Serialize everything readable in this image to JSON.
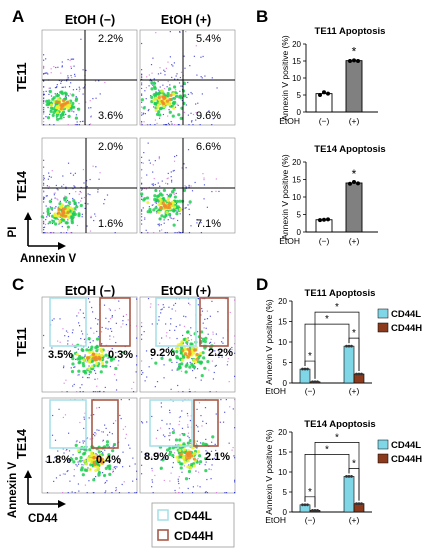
{
  "colors": {
    "white_bar": "#ffffff",
    "gray_bar": "#808080",
    "cd44l": "#7fd6e6",
    "cd44h": "#8b3a1d",
    "gate_l": "#a9e1ea",
    "gate_h": "#a85a48",
    "dot_blue": "#2b2fd1",
    "dot_green": "#1ccf4f",
    "dot_yellow": "#eef22a",
    "dot_orange": "#f08a2a"
  },
  "panel_A": {
    "letter": "A",
    "col_headers": [
      "EtOH (−)",
      "EtOH (+)"
    ],
    "row_labels": [
      "TE11",
      "TE14"
    ],
    "x_axis_label": "Annexin V",
    "y_axis_label": "PI",
    "quadrants": [
      {
        "row": 0,
        "col": 0,
        "upper_right": "2.2%",
        "lower_right": "3.6%"
      },
      {
        "row": 0,
        "col": 1,
        "upper_right": "5.4%",
        "lower_right": "9.6%"
      },
      {
        "row": 1,
        "col": 0,
        "upper_right": "2.0%",
        "lower_right": "1.6%"
      },
      {
        "row": 1,
        "col": 1,
        "upper_right": "6.6%",
        "lower_right": "7.1%"
      }
    ]
  },
  "panel_C": {
    "letter": "C",
    "col_headers": [
      "EtOH (−)",
      "EtOH (+)"
    ],
    "row_labels": [
      "TE11",
      "TE14"
    ],
    "x_axis_label": "CD44",
    "y_axis_label": "Annexin V",
    "gates": [
      {
        "row": 0,
        "col": 0,
        "left": "3.5%",
        "right": "0.3%"
      },
      {
        "row": 0,
        "col": 1,
        "left": "9.2%",
        "right": "2.2%"
      },
      {
        "row": 1,
        "col": 0,
        "left": "1.8%",
        "right": "0.4%"
      },
      {
        "row": 1,
        "col": 1,
        "left": "8.9%",
        "right": "2.1%"
      }
    ],
    "legend": [
      "CD44L",
      "CD44H"
    ]
  },
  "chart_data": [
    {
      "panel": "B",
      "type": "bar",
      "title": "TE11 Apoptosis",
      "ylabel": "Annexin V positive (%)",
      "xlabel": "EtOH",
      "categories": [
        "(−)",
        "(+)"
      ],
      "values": [
        5.4,
        15.1
      ],
      "points": [
        [
          5.0,
          5.8,
          5.4
        ],
        [
          15.0,
          15.2,
          15.0
        ]
      ],
      "ylim": [
        0,
        20
      ],
      "yticks": [
        0,
        5,
        10,
        15,
        20
      ],
      "significance": [
        {
          "category": "(+)",
          "label": "*"
        }
      ]
    },
    {
      "panel": "B",
      "type": "bar",
      "title": "TE14 Apoptosis",
      "ylabel": "Annexin V positive (%)",
      "xlabel": "EtOH",
      "categories": [
        "(−)",
        "(+)"
      ],
      "values": [
        3.5,
        14.0
      ],
      "points": [
        [
          3.4,
          3.5,
          3.6
        ],
        [
          13.8,
          14.3,
          13.9
        ]
      ],
      "ylim": [
        0,
        20
      ],
      "yticks": [
        0,
        5,
        10,
        15,
        20
      ],
      "significance": [
        {
          "category": "(+)",
          "label": "*"
        }
      ]
    },
    {
      "panel": "D",
      "type": "bar",
      "title": "TE11 Apoptosis",
      "ylabel": "Annexin V positive (%)",
      "xlabel": "EtOH",
      "categories": [
        "(−)",
        "(+)"
      ],
      "series": [
        {
          "name": "CD44L",
          "values": [
            3.4,
            9.0
          ]
        },
        {
          "name": "CD44H",
          "values": [
            0.3,
            2.2
          ]
        }
      ],
      "ylim": [
        0,
        20
      ],
      "yticks": [
        0,
        5,
        10,
        15,
        20
      ],
      "significance_label": "*",
      "legend": "right"
    },
    {
      "panel": "D",
      "type": "bar",
      "title": "TE14 Apoptosis",
      "ylabel": "Annexin V positive (%)",
      "xlabel": "EtOH",
      "categories": [
        "(−)",
        "(+)"
      ],
      "series": [
        {
          "name": "CD44L",
          "values": [
            1.8,
            8.9
          ]
        },
        {
          "name": "CD44H",
          "values": [
            0.4,
            2.1
          ]
        }
      ],
      "ylim": [
        0,
        20
      ],
      "yticks": [
        0,
        5,
        10,
        15,
        20
      ],
      "significance_label": "*",
      "legend": "right"
    }
  ],
  "panel_letters": {
    "B": "B",
    "D": "D"
  }
}
